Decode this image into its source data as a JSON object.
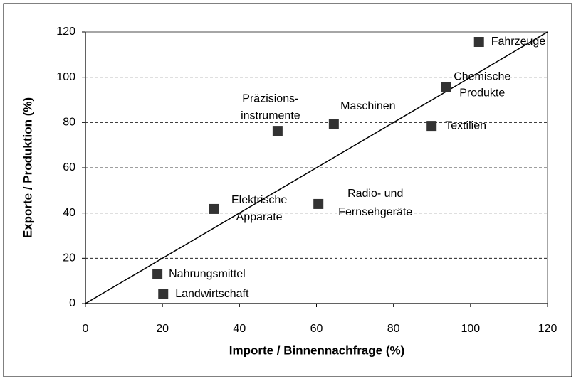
{
  "chart_data": {
    "type": "scatter",
    "x_label": "Importe / Binnennachfrage (%)",
    "y_label": "Exporte / Produktion (%)",
    "x": [
      102.2,
      93.6,
      49.9,
      64.5,
      89.9,
      33.3,
      60.5,
      18.7,
      20.2
    ],
    "values": [
      115.6,
      95.8,
      76.3,
      79.2,
      78.5,
      41.8,
      44,
      12.9,
      4.1
    ],
    "labels": [
      [
        "Fahrzeuge"
      ],
      [
        "Chemische",
        "Produkte"
      ],
      [
        "Präzisions-",
        "instrumente"
      ],
      [
        "Maschinen"
      ],
      [
        "Textilien"
      ],
      [
        "Elektrische",
        "Apparate"
      ],
      [
        "Radio- und",
        "Fernsehgeräte"
      ],
      [
        "Nahrungsmittel"
      ],
      [
        "Landwirtschaft"
      ]
    ],
    "color": "#333333",
    "diagonal": {
      "x": [
        0,
        120
      ],
      "y": [
        0,
        120
      ]
    },
    "xlim": [
      0,
      120
    ],
    "ylim": [
      0,
      120
    ],
    "xticks": [
      0,
      20,
      40,
      60,
      80,
      100,
      120
    ],
    "yticks": [
      0,
      20,
      40,
      60,
      80,
      100,
      120
    ],
    "grid": true
  }
}
